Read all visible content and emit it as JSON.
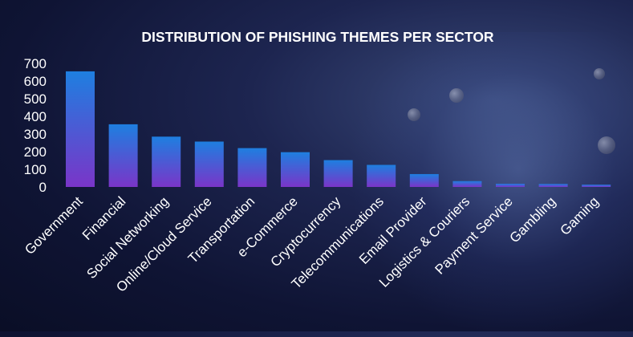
{
  "chart_data": {
    "type": "bar",
    "title": "DISTRIBUTION OF PHISHING THEMES PER SECTOR",
    "xlabel": "",
    "ylabel": "",
    "ylim": [
      0,
      700
    ],
    "yticks": [
      700,
      600,
      500,
      400,
      300,
      200,
      100,
      0
    ],
    "categories": [
      "Government",
      "Financial",
      "Social Networking",
      "Online/Cloud Service",
      "Transportation",
      "e-Commerce",
      "Cryptocurrency",
      "Telecommunications",
      "Email Provider",
      "Logistics & Couriers",
      "Payment Service",
      "Gambling",
      "Gaming"
    ],
    "values": [
      655,
      355,
      285,
      257,
      220,
      197,
      152,
      125,
      73,
      33,
      18,
      17,
      13
    ],
    "grid": false,
    "legend": "none",
    "colors": {
      "bar_top": "#1e7fe0",
      "bar_bottom": "#7a35c8",
      "text": "#ffffff"
    }
  }
}
